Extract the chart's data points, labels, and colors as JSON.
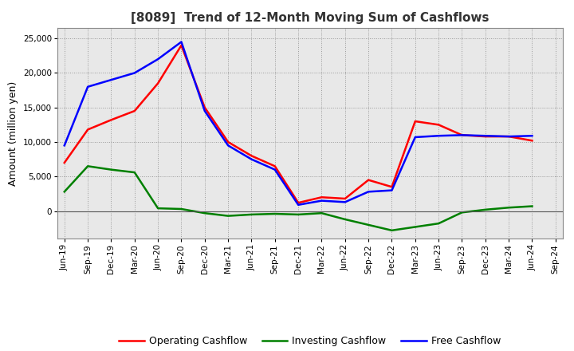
{
  "title": "[8089]  Trend of 12-Month Moving Sum of Cashflows",
  "ylabel": "Amount (million yen)",
  "xlabels": [
    "Jun-19",
    "Sep-19",
    "Dec-19",
    "Mar-20",
    "Jun-20",
    "Sep-20",
    "Dec-20",
    "Mar-21",
    "Jun-21",
    "Sep-21",
    "Dec-21",
    "Mar-22",
    "Jun-22",
    "Sep-22",
    "Dec-22",
    "Mar-23",
    "Jun-23",
    "Sep-23",
    "Dec-23",
    "Mar-24",
    "Jun-24",
    "Sep-24"
  ],
  "operating": [
    7000,
    11800,
    13200,
    14500,
    18500,
    24000,
    15000,
    10000,
    8000,
    6500,
    1200,
    2000,
    1800,
    4500,
    3500,
    13000,
    12500,
    11000,
    10800,
    10800,
    10200,
    null
  ],
  "investing": [
    2800,
    6500,
    6000,
    5600,
    400,
    300,
    -300,
    -700,
    -500,
    -400,
    -500,
    -300,
    -1200,
    -2000,
    -2800,
    -2300,
    -1800,
    -200,
    200,
    500,
    700,
    null
  ],
  "free": [
    9500,
    18000,
    19000,
    20000,
    22000,
    24500,
    14500,
    9500,
    7500,
    6000,
    900,
    1500,
    1300,
    2800,
    3000,
    10700,
    10900,
    11000,
    10900,
    10800,
    10900,
    null
  ],
  "operating_color": "#ff0000",
  "investing_color": "#008000",
  "free_color": "#0000ff",
  "ylim": [
    -4000,
    26500
  ],
  "yticks": [
    0,
    5000,
    10000,
    15000,
    20000,
    25000
  ],
  "plot_bg_color": "#e8e8e8",
  "fig_bg_color": "#ffffff",
  "grid_color": "#999999",
  "title_fontsize": 11,
  "tick_fontsize": 7.5,
  "ylabel_fontsize": 9
}
